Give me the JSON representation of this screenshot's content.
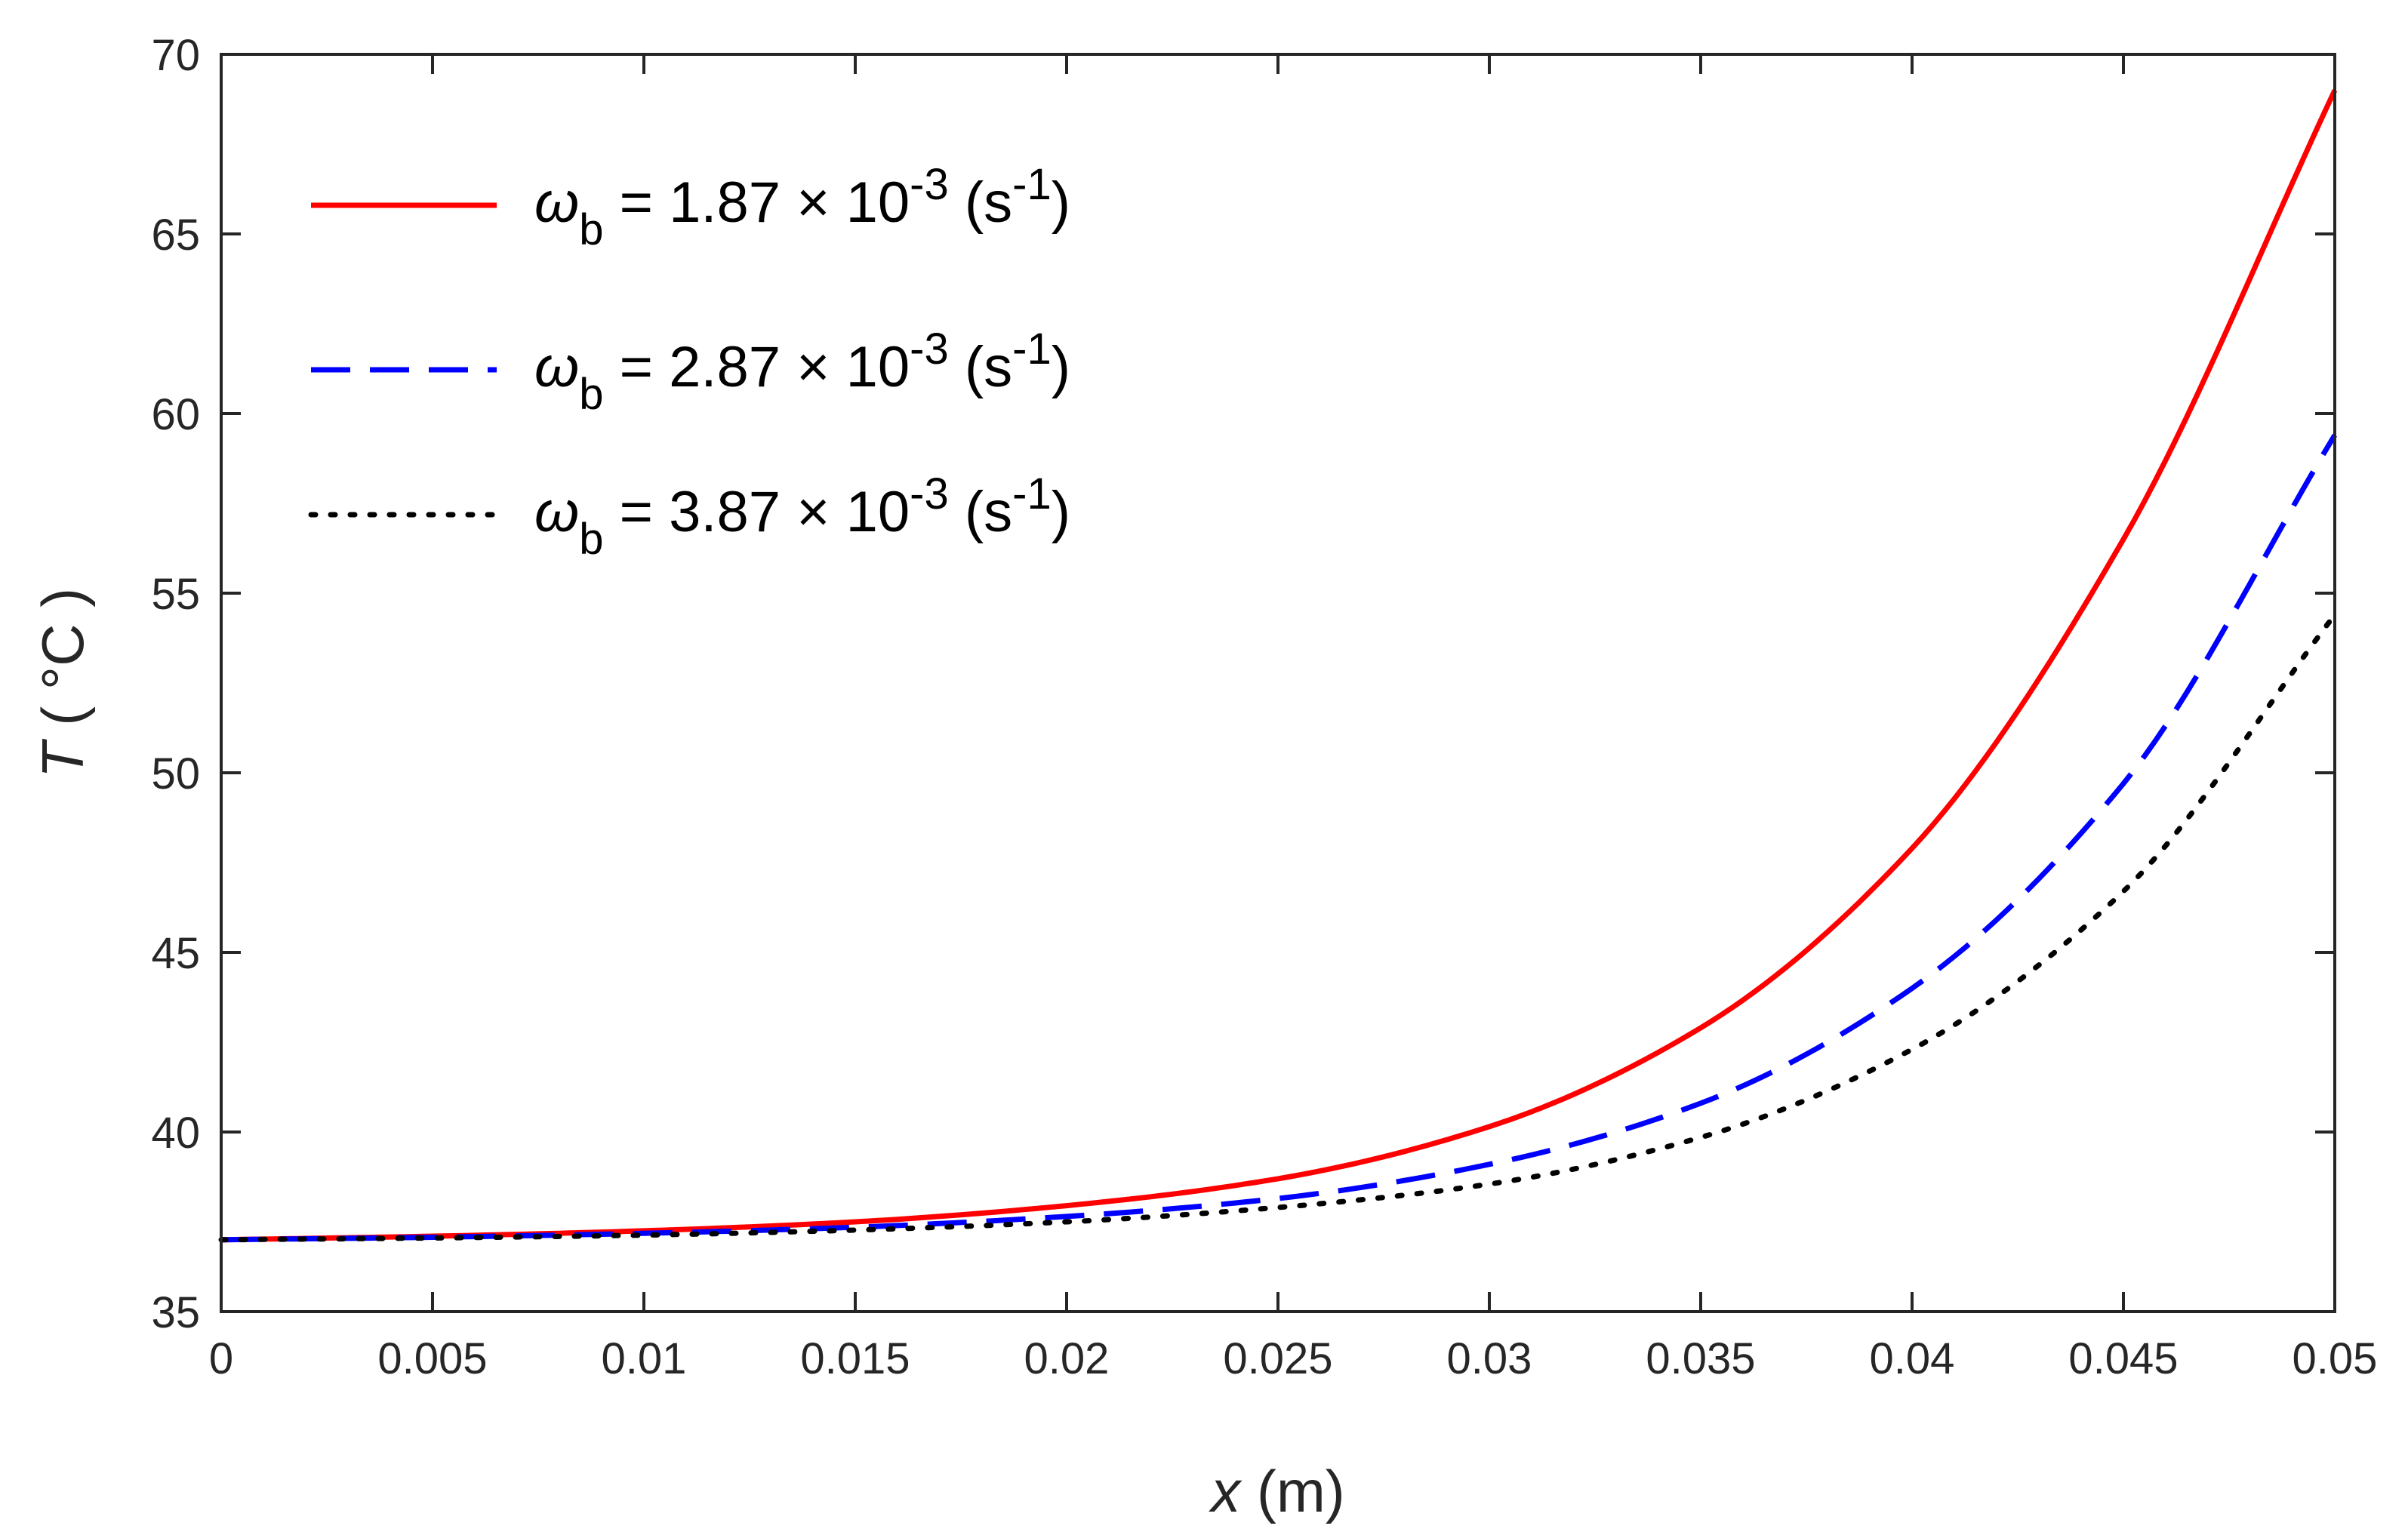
{
  "chart_data": {
    "type": "line",
    "title": "",
    "xlabel": {
      "var": "x",
      "unit": " (m)"
    },
    "ylabel": {
      "var": "T",
      "unit": " ( °C )"
    },
    "xlim": [
      0,
      0.05
    ],
    "ylim": [
      35,
      70
    ],
    "xticks": [
      0,
      0.005,
      0.01,
      0.015,
      0.02,
      0.025,
      0.03,
      0.035,
      0.04,
      0.045,
      0.05
    ],
    "xtick_labels": [
      "0",
      "0.005",
      "0.01",
      "0.015",
      "0.02",
      "0.025",
      "0.03",
      "0.035",
      "0.04",
      "0.045",
      "0.05"
    ],
    "yticks": [
      35,
      40,
      45,
      50,
      55,
      60,
      65,
      70
    ],
    "ytick_labels": [
      "35",
      "40",
      "45",
      "50",
      "55",
      "60",
      "65",
      "70"
    ],
    "grid": false,
    "legend_position": "top-left",
    "series": [
      {
        "name": "ω_b = 1.87 × 10^-3 (s^-1)",
        "label": {
          "sym": "ω",
          "sub": "b",
          "pre": " = 1.87 × 10",
          "exp": "-3",
          "mid": " (s",
          "unit_exp": "-1",
          "post": ")"
        },
        "color": "#ff0000",
        "style": "solid",
        "x": [
          0,
          0.005,
          0.01,
          0.015,
          0.02,
          0.025,
          0.03,
          0.035,
          0.04,
          0.045,
          0.05
        ],
        "y": [
          37.0,
          37.1,
          37.25,
          37.5,
          37.95,
          38.7,
          40.15,
          42.9,
          47.9,
          56.5,
          69.0
        ]
      },
      {
        "name": "ω_b = 2.87 × 10^-3 (s^-1)",
        "label": {
          "sym": "ω",
          "sub": "b",
          "pre": " = 2.87 × 10",
          "exp": "-3",
          "mid": " (s",
          "unit_exp": "-1",
          "post": ")"
        },
        "color": "#0000ff",
        "style": "dashed",
        "x": [
          0,
          0.005,
          0.01,
          0.015,
          0.02,
          0.025,
          0.03,
          0.035,
          0.04,
          0.045,
          0.05
        ],
        "y": [
          37.0,
          37.07,
          37.18,
          37.35,
          37.65,
          38.15,
          39.1,
          40.8,
          44.0,
          49.7,
          59.4
        ]
      },
      {
        "name": "ω_b = 3.87 × 10^-3 (s^-1)",
        "label": {
          "sym": "ω",
          "sub": "b",
          "pre": " = 3.87 × 10",
          "exp": "-3",
          "mid": " (s",
          "unit_exp": "-1",
          "post": ")"
        },
        "color": "#000000",
        "style": "dotted",
        "x": [
          0,
          0.005,
          0.01,
          0.015,
          0.02,
          0.025,
          0.03,
          0.035,
          0.04,
          0.045,
          0.05
        ],
        "y": [
          37.0,
          37.05,
          37.13,
          37.27,
          37.5,
          37.9,
          38.55,
          39.85,
          42.3,
          46.7,
          54.4
        ]
      }
    ]
  }
}
